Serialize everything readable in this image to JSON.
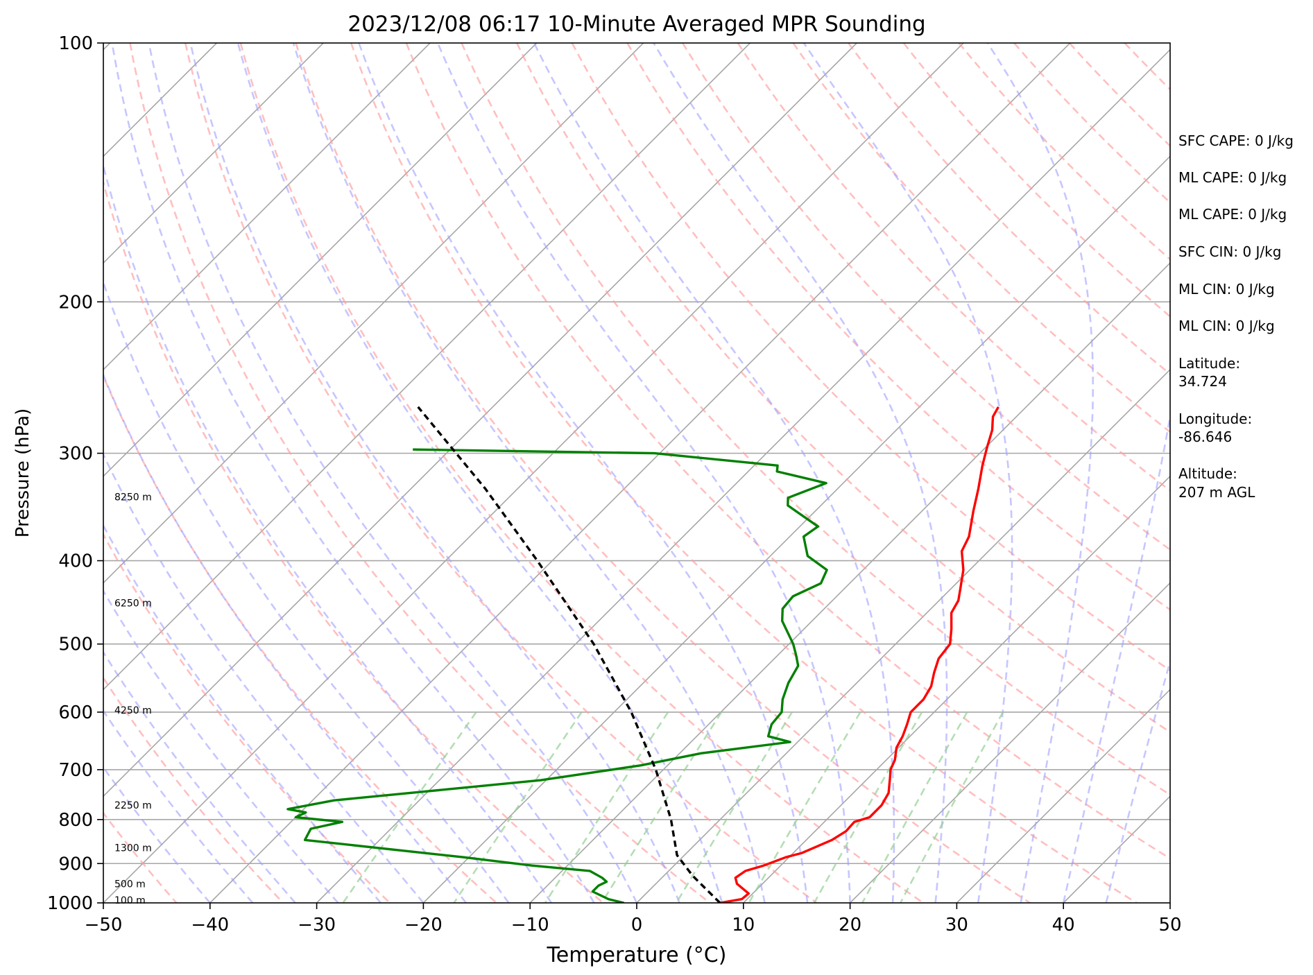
{
  "chart_data": {
    "type": "line",
    "title": "2023/12/08 06:17 10-Minute Averaged MPR Sounding",
    "xlabel": "Temperature (°C)",
    "ylabel": "Pressure (hPa)",
    "xlim": [
      -50,
      50
    ],
    "ylim": [
      1000,
      100
    ],
    "y_scale": "log",
    "grid": true,
    "x_ticks": [
      "−50",
      "−40",
      "−30",
      "−20",
      "−10",
      "0",
      "10",
      "20",
      "30",
      "40",
      "50"
    ],
    "y_ticks": [
      "100",
      "200",
      "300",
      "400",
      "500",
      "600",
      "700",
      "800",
      "900",
      "1000"
    ],
    "height_labels": [
      {
        "text": "100 m",
        "p": 993
      },
      {
        "text": "500 m",
        "p": 950
      },
      {
        "text": "1300 m",
        "p": 863
      },
      {
        "text": "2250 m",
        "p": 770
      },
      {
        "text": "4250 m",
        "p": 597
      },
      {
        "text": "6250 m",
        "p": 448
      },
      {
        "text": "8250 m",
        "p": 337
      }
    ],
    "series": [
      {
        "name": "",
        "color": "#ff0000",
        "points": [
          {
            "p": 1000,
            "t": 7.8
          },
          {
            "p": 990,
            "t": 9.5
          },
          {
            "p": 975,
            "t": 9.6
          },
          {
            "p": 950,
            "t": 7.6
          },
          {
            "p": 935,
            "t": 6.9
          },
          {
            "p": 918,
            "t": 7.2
          },
          {
            "p": 905,
            "t": 8.4
          },
          {
            "p": 885,
            "t": 9.7
          },
          {
            "p": 875,
            "t": 10.8
          },
          {
            "p": 845,
            "t": 12.4
          },
          {
            "p": 825,
            "t": 12.9
          },
          {
            "p": 805,
            "t": 12.8
          },
          {
            "p": 795,
            "t": 13.8
          },
          {
            "p": 770,
            "t": 13.8
          },
          {
            "p": 745,
            "t": 13.3
          },
          {
            "p": 715,
            "t": 12.0
          },
          {
            "p": 700,
            "t": 11.3
          },
          {
            "p": 682,
            "t": 10.8
          },
          {
            "p": 660,
            "t": 9.8
          },
          {
            "p": 640,
            "t": 9.3
          },
          {
            "p": 620,
            "t": 8.6
          },
          {
            "p": 600,
            "t": 7.8
          },
          {
            "p": 580,
            "t": 7.8
          },
          {
            "p": 560,
            "t": 7.3
          },
          {
            "p": 540,
            "t": 6.3
          },
          {
            "p": 520,
            "t": 5.4
          },
          {
            "p": 500,
            "t": 5.1
          },
          {
            "p": 480,
            "t": 3.8
          },
          {
            "p": 460,
            "t": 2.3
          },
          {
            "p": 445,
            "t": 1.8
          },
          {
            "p": 430,
            "t": 0.8
          },
          {
            "p": 410,
            "t": -0.6
          },
          {
            "p": 390,
            "t": -2.5
          },
          {
            "p": 375,
            "t": -3.2
          },
          {
            "p": 350,
            "t": -5.2
          },
          {
            "p": 330,
            "t": -6.8
          },
          {
            "p": 310,
            "t": -8.6
          },
          {
            "p": 295,
            "t": -9.9
          },
          {
            "p": 282,
            "t": -11.0
          },
          {
            "p": 272,
            "t": -12.2
          },
          {
            "p": 265,
            "t": -12.6
          }
        ]
      },
      {
        "name": "",
        "color": "#008000",
        "points": [
          {
            "p": 1000,
            "t": -1.2
          },
          {
            "p": 990,
            "t": -3.0
          },
          {
            "p": 970,
            "t": -5.2
          },
          {
            "p": 955,
            "t": -5.2
          },
          {
            "p": 945,
            "t": -4.8
          },
          {
            "p": 935,
            "t": -5.6
          },
          {
            "p": 918,
            "t": -7.4
          },
          {
            "p": 905,
            "t": -13.3
          },
          {
            "p": 885,
            "t": -20.5
          },
          {
            "p": 845,
            "t": -37.0
          },
          {
            "p": 820,
            "t": -37.5
          },
          {
            "p": 805,
            "t": -35.2
          },
          {
            "p": 795,
            "t": -40.0
          },
          {
            "p": 785,
            "t": -39.5
          },
          {
            "p": 778,
            "t": -41.5
          },
          {
            "p": 760,
            "t": -38.0
          },
          {
            "p": 720,
            "t": -20.5
          },
          {
            "p": 692,
            "t": -12.5
          },
          {
            "p": 670,
            "t": -8.0
          },
          {
            "p": 650,
            "t": -0.7
          },
          {
            "p": 640,
            "t": -3.3
          },
          {
            "p": 620,
            "t": -4.1
          },
          {
            "p": 600,
            "t": -4.3
          },
          {
            "p": 580,
            "t": -5.4
          },
          {
            "p": 555,
            "t": -6.4
          },
          {
            "p": 530,
            "t": -7.1
          },
          {
            "p": 515,
            "t": -8.3
          },
          {
            "p": 500,
            "t": -9.6
          },
          {
            "p": 470,
            "t": -12.8
          },
          {
            "p": 455,
            "t": -13.9
          },
          {
            "p": 440,
            "t": -14.1
          },
          {
            "p": 425,
            "t": -12.7
          },
          {
            "p": 410,
            "t": -13.4
          },
          {
            "p": 395,
            "t": -16.5
          },
          {
            "p": 375,
            "t": -18.7
          },
          {
            "p": 365,
            "t": -18.3
          },
          {
            "p": 345,
            "t": -23.1
          },
          {
            "p": 338,
            "t": -23.8
          },
          {
            "p": 325,
            "t": -21.6
          },
          {
            "p": 315,
            "t": -27.3
          },
          {
            "p": 310,
            "t": -27.8
          },
          {
            "p": 300,
            "t": -40.5
          },
          {
            "p": 297,
            "t": -63.5
          }
        ]
      },
      {
        "name": "",
        "color": "#000000",
        "points": [
          {
            "p": 1000,
            "t": 7.8
          },
          {
            "p": 930,
            "t": 2.7
          },
          {
            "p": 880,
            "t": -0.7
          },
          {
            "p": 800,
            "t": -4.6
          },
          {
            "p": 700,
            "t": -10.7
          },
          {
            "p": 600,
            "t": -18.4
          },
          {
            "p": 500,
            "t": -28.3
          },
          {
            "p": 400,
            "t": -41.4
          },
          {
            "p": 330,
            "t": -53.0
          },
          {
            "p": 265,
            "t": -67.0
          }
        ]
      }
    ]
  },
  "info": {
    "sfc_cape": "SFC CAPE: 0 J/kg",
    "ml_cape_1": "ML CAPE: 0 J/kg",
    "ml_cape_2": "ML CAPE: 0 J/kg",
    "sfc_cin": "SFC CIN: 0 J/kg",
    "ml_cin_1": "ML CIN: 0 J/kg",
    "ml_cin_2": "ML CIN: 0 J/kg",
    "lat_label": "Latitude:",
    "lat_value": "34.724",
    "lon_label": "Longitude:",
    "lon_value": "-86.646",
    "alt_label": "Altitude:",
    "alt_value": "207 m AGL"
  }
}
